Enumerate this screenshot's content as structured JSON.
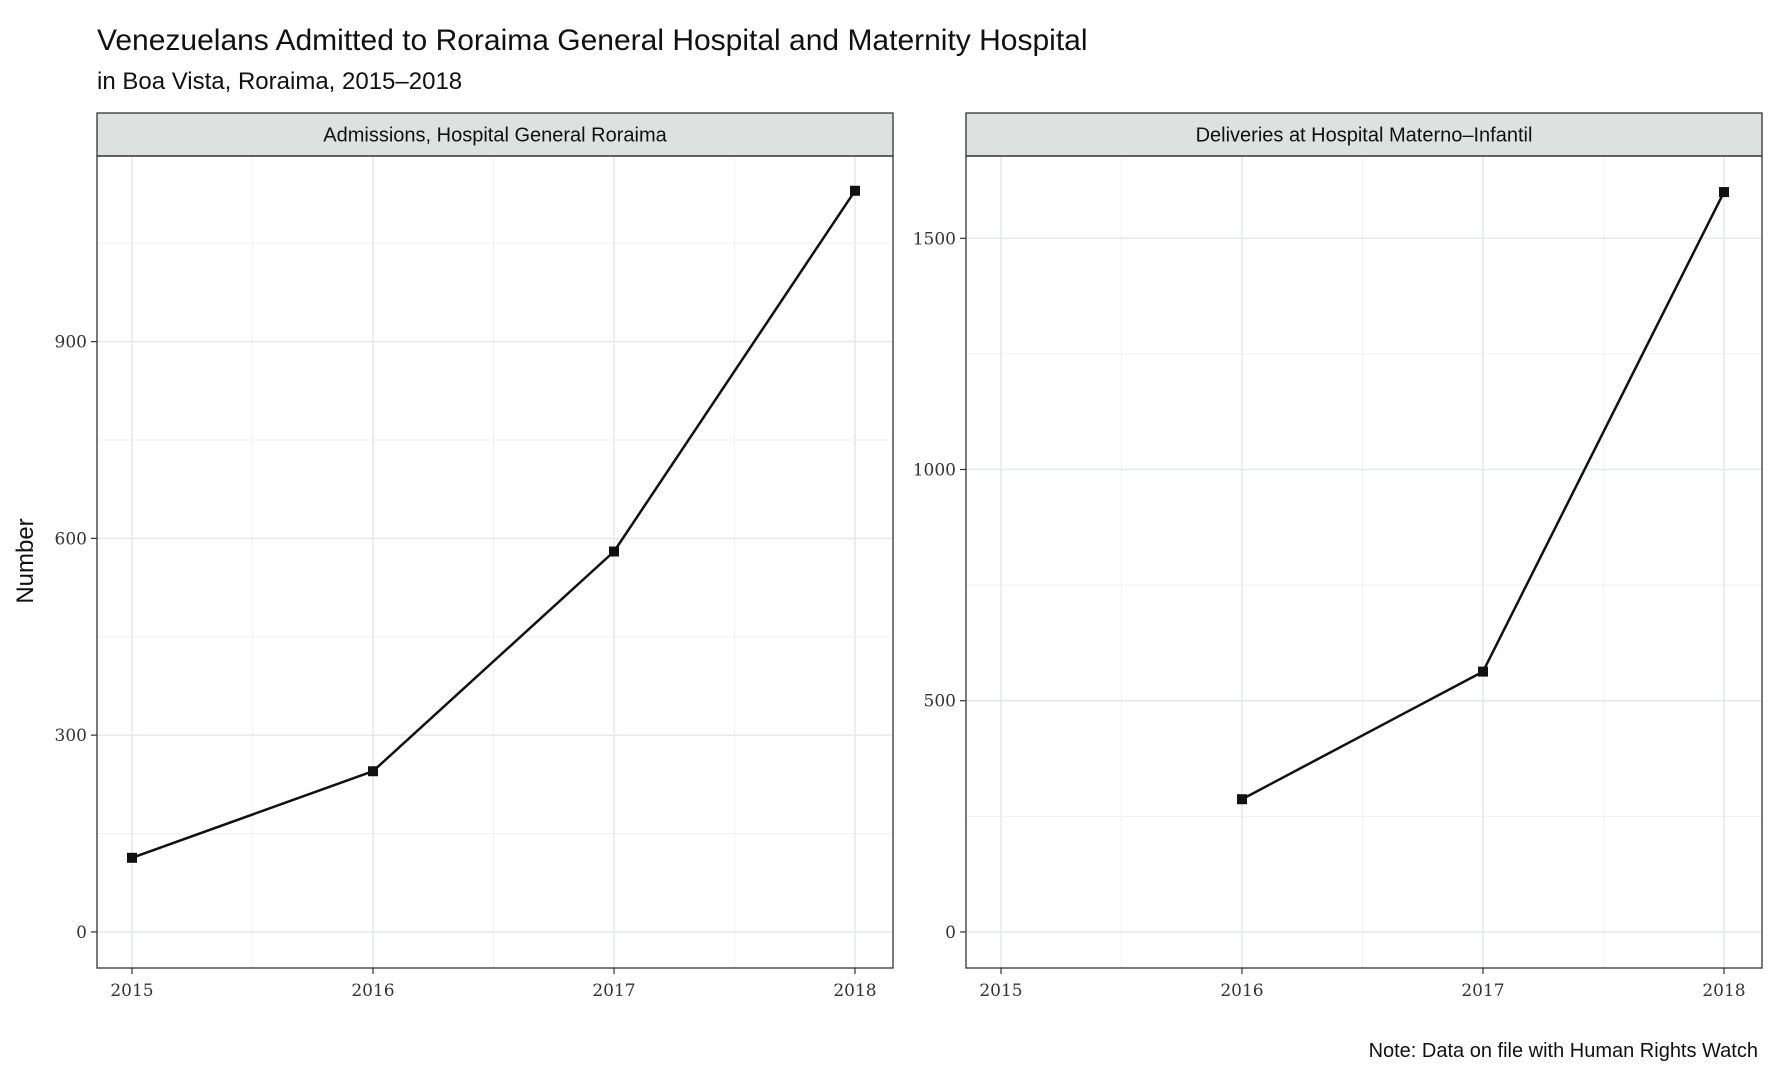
{
  "chart_data": {
    "type": "line",
    "title": "Venezuelans Admitted to Roraima General Hospital and Maternity Hospital",
    "subtitle": "in Boa Vista, Roraima, 2015–2018",
    "ylabel": "Number",
    "note": "Note: Data on file with Human Rights Watch",
    "grid": true,
    "legend": "none",
    "line_color": "#111111",
    "panels": [
      {
        "title": "Admissions, Hospital General Roraima",
        "x": [
          2015,
          2016,
          2017,
          2018
        ],
        "values": [
          113,
          245,
          580,
          1130
        ],
        "xlim": [
          2015,
          2018
        ],
        "ylim": [
          -55,
          1183
        ],
        "yticks": [
          0,
          300,
          600,
          900
        ],
        "xticks": [
          2015,
          2016,
          2017,
          2018
        ]
      },
      {
        "title": "Deliveries at Hospital Materno–Infantil",
        "x": [
          2016,
          2017,
          2018
        ],
        "values": [
          287,
          563,
          1600
        ],
        "xlim": [
          2015,
          2018
        ],
        "ylim": [
          -78,
          1678
        ],
        "yticks": [
          0,
          500,
          1000,
          1500
        ],
        "xticks": [
          2015,
          2016,
          2017,
          2018
        ]
      }
    ]
  }
}
